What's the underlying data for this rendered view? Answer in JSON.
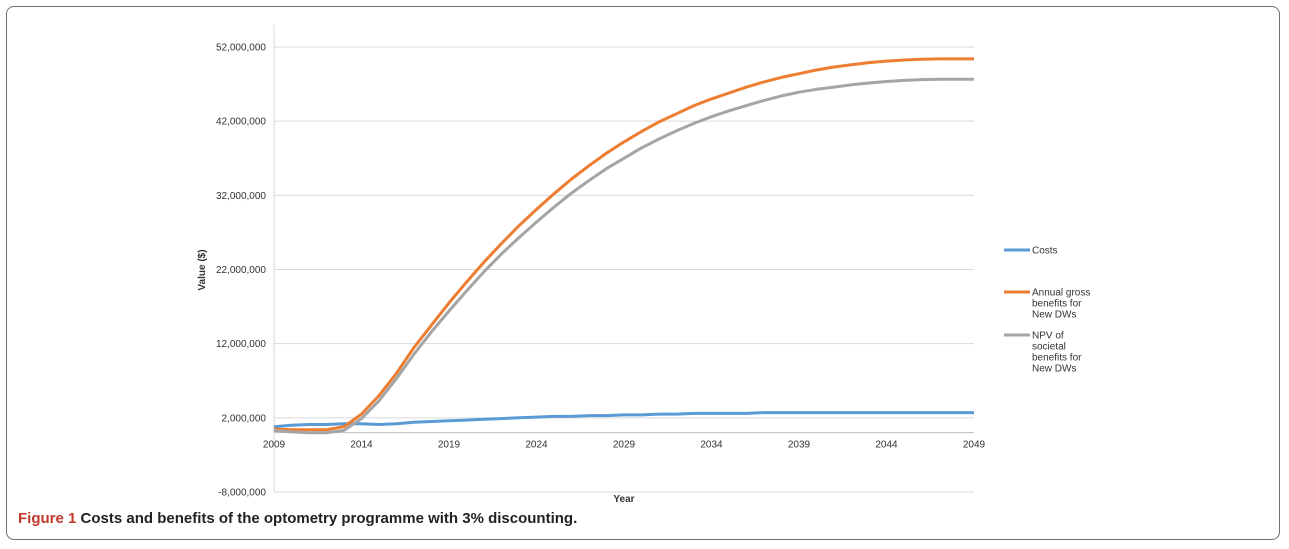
{
  "caption": {
    "label": "Figure 1",
    "text": "Costs and benefits of the optometry programme with 3% discounting."
  },
  "chart_data": {
    "type": "line",
    "xlabel": "Year",
    "ylabel": "Value ($)",
    "ylim": [
      -8000000,
      52000000
    ],
    "yticks": [
      52000000,
      42000000,
      32000000,
      22000000,
      12000000,
      2000000,
      -8000000
    ],
    "ytick_labels": [
      "52,000,000",
      "42,000,000",
      "32,000,000",
      "22,000,000",
      "12,000,000",
      "2,000,000",
      "-8,000,000"
    ],
    "xlim": [
      2009,
      2049
    ],
    "xticks": [
      2009,
      2014,
      2019,
      2024,
      2029,
      2034,
      2039,
      2044,
      2049
    ],
    "xtick_labels": [
      "2009",
      "2014",
      "2019",
      "2024",
      "2029",
      "2034",
      "2039",
      "2044",
      "2049"
    ],
    "grid": "horizontal",
    "legend_position": "right",
    "x": [
      2009,
      2010,
      2011,
      2012,
      2013,
      2014,
      2015,
      2016,
      2017,
      2018,
      2019,
      2020,
      2021,
      2022,
      2023,
      2024,
      2025,
      2026,
      2027,
      2028,
      2029,
      2030,
      2031,
      2032,
      2033,
      2034,
      2035,
      2036,
      2037,
      2038,
      2039,
      2040,
      2041,
      2042,
      2043,
      2044,
      2045,
      2046,
      2047,
      2048,
      2049
    ],
    "series": [
      {
        "name": "Costs",
        "color": "#5b9bd5",
        "values": [
          800000,
          1000000,
          1100000,
          1100000,
          1200000,
          1200000,
          1100000,
          1200000,
          1400000,
          1500000,
          1600000,
          1700000,
          1800000,
          1900000,
          2000000,
          2100000,
          2200000,
          2200000,
          2300000,
          2300000,
          2400000,
          2400000,
          2500000,
          2500000,
          2600000,
          2600000,
          2600000,
          2600000,
          2700000,
          2700000,
          2700000,
          2700000,
          2700000,
          2700000,
          2700000,
          2700000,
          2700000,
          2700000,
          2700000,
          2700000,
          2700000
        ]
      },
      {
        "name": "Annual gross benefits for New DWs",
        "color": "#ed7d31",
        "values": [
          500000,
          400000,
          400000,
          400000,
          800000,
          2500000,
          5000000,
          8000000,
          11500000,
          14500000,
          17500000,
          20300000,
          23000000,
          25500000,
          27900000,
          30100000,
          32200000,
          34200000,
          36000000,
          37700000,
          39200000,
          40600000,
          41900000,
          43000000,
          44100000,
          45000000,
          45800000,
          46600000,
          47300000,
          47900000,
          48400000,
          48900000,
          49300000,
          49600000,
          49900000,
          50100000,
          50250000,
          50350000,
          50400000,
          50400000,
          50400000
        ]
      },
      {
        "name": "NPV of societal benefits for New DWs",
        "color": "#a5a5a5",
        "values": [
          300000,
          100000,
          0,
          0,
          300000,
          1900000,
          4300000,
          7300000,
          10600000,
          13600000,
          16400000,
          19100000,
          21700000,
          24100000,
          26300000,
          28400000,
          30400000,
          32300000,
          34000000,
          35600000,
          37000000,
          38400000,
          39600000,
          40700000,
          41700000,
          42600000,
          43400000,
          44100000,
          44800000,
          45400000,
          45900000,
          46300000,
          46600000,
          46900000,
          47150000,
          47350000,
          47500000,
          47600000,
          47650000,
          47650000,
          47650000
        ]
      }
    ]
  }
}
